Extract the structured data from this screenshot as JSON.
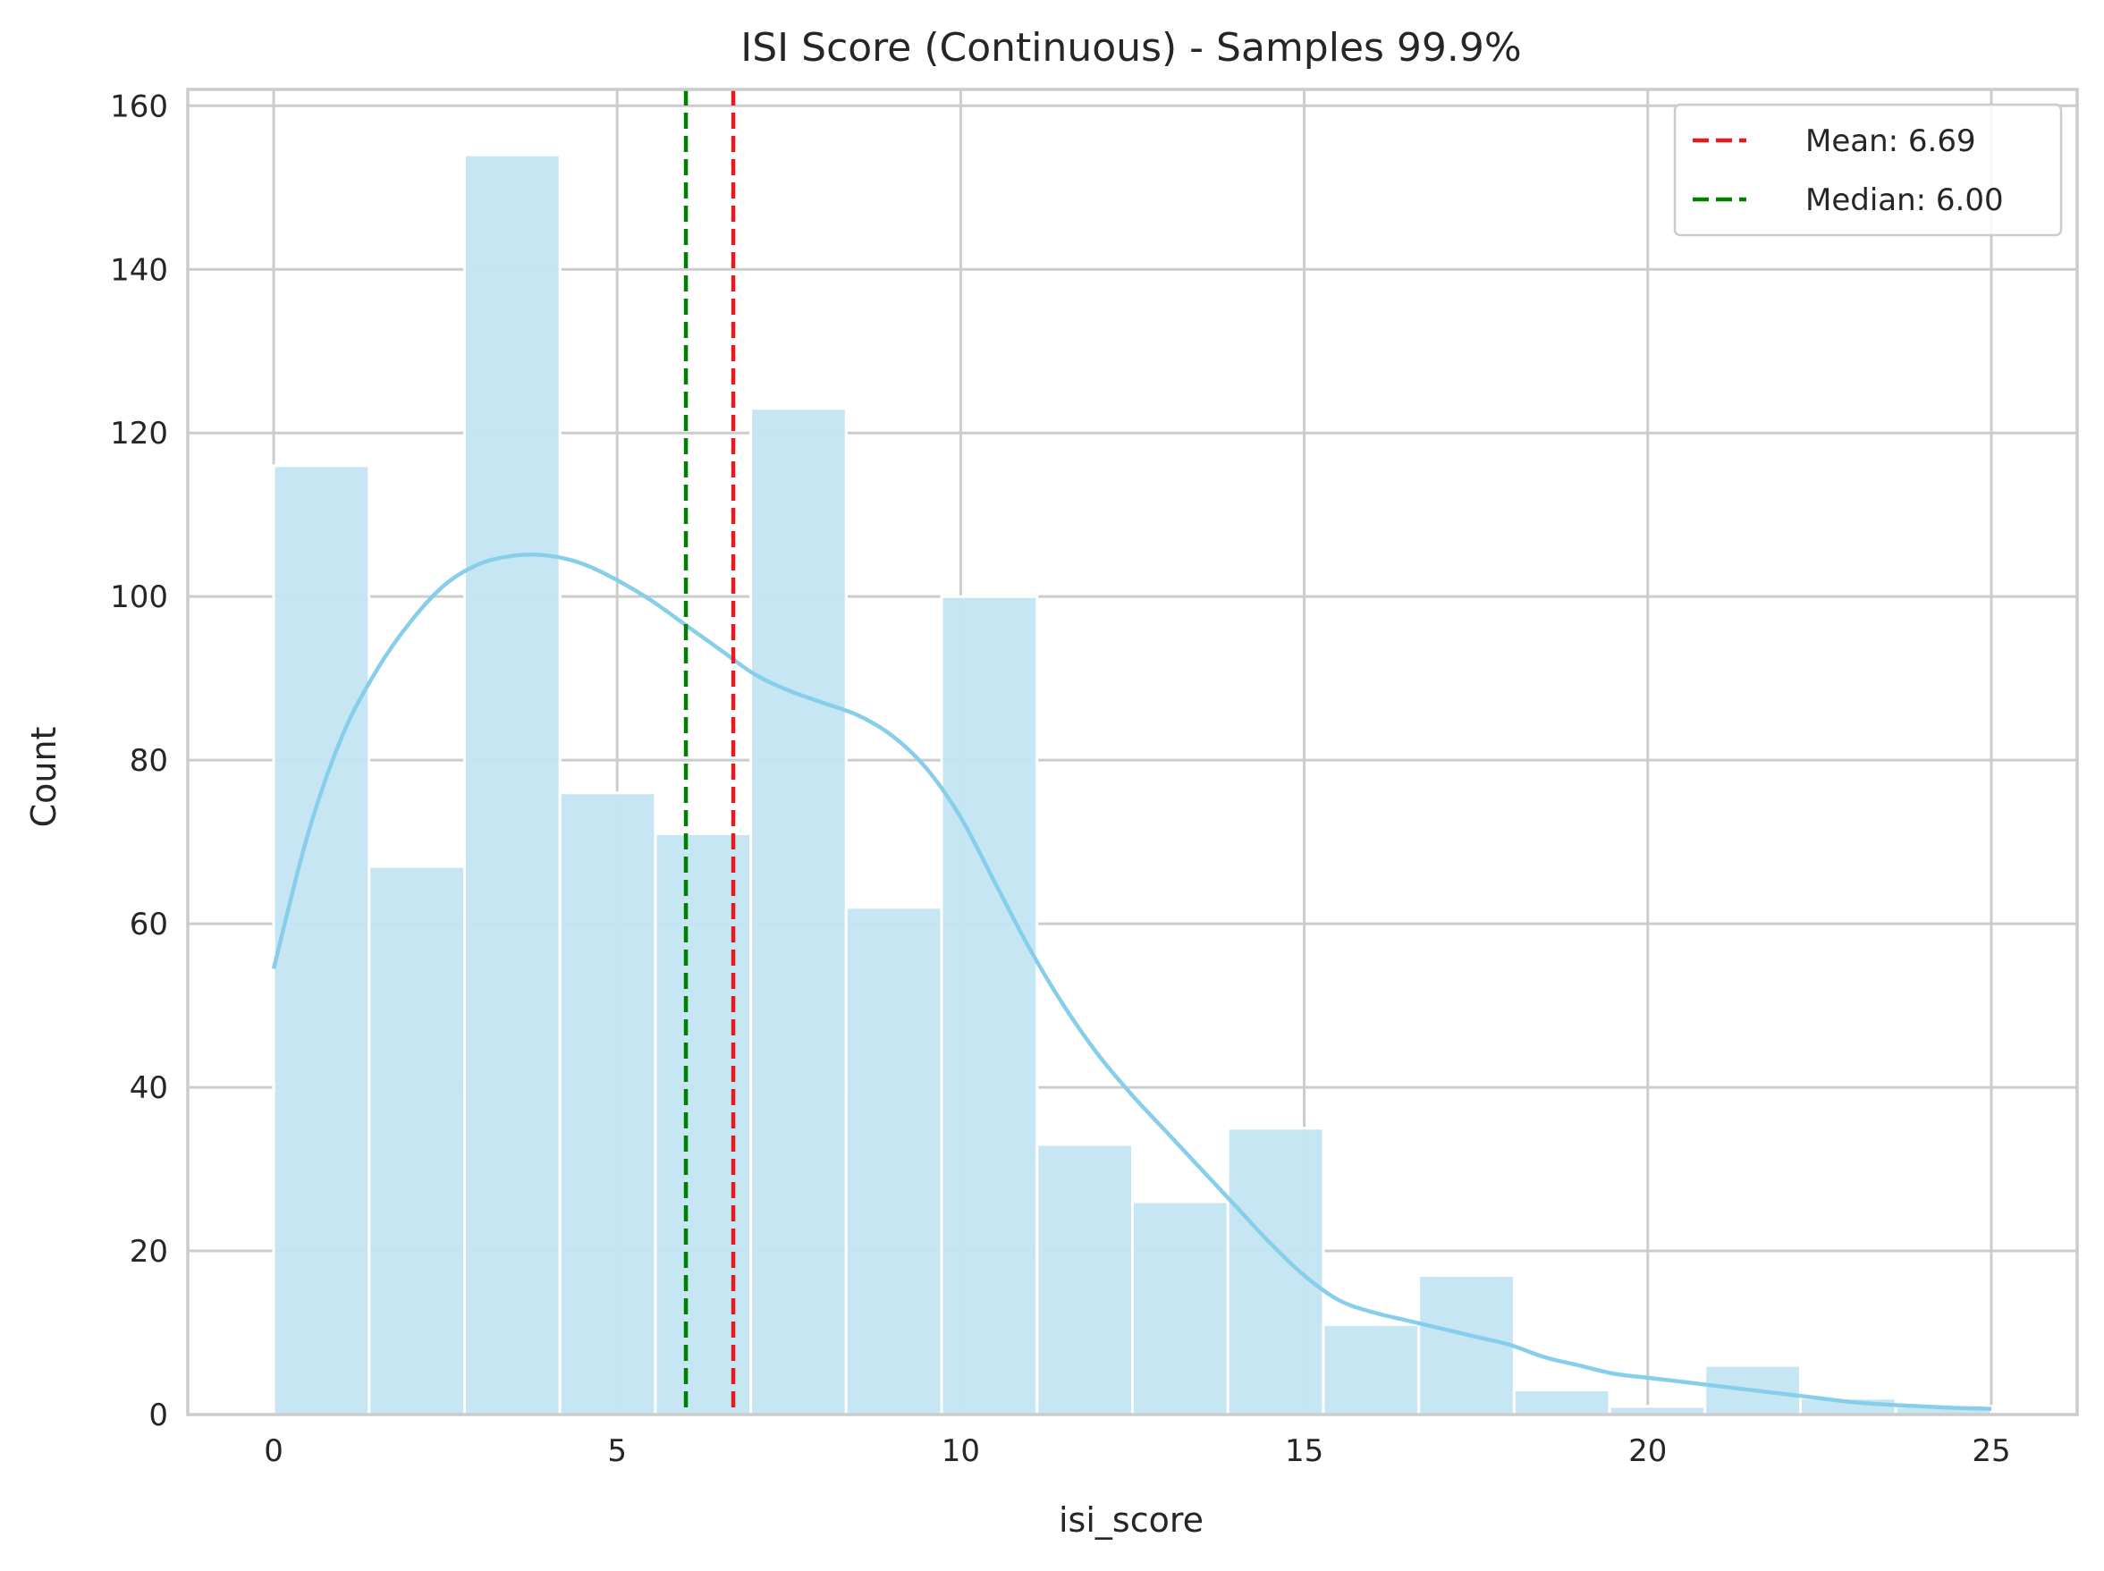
{
  "chart_data": {
    "type": "bar",
    "title": "ISI Score (Continuous) - Samples 99.9%",
    "xlabel": "isi_score",
    "ylabel": "Count",
    "xlim": [
      -1.25,
      26.25
    ],
    "ylim": [
      0,
      162
    ],
    "x_ticks": [
      0,
      5,
      10,
      15,
      20,
      25
    ],
    "y_ticks": [
      0,
      20,
      40,
      60,
      80,
      100,
      120,
      140,
      160
    ],
    "grid": true,
    "legend_position": "top-right",
    "bins": {
      "edges": [
        0,
        1.389,
        2.778,
        4.167,
        5.556,
        6.944,
        8.333,
        9.722,
        11.111,
        12.5,
        13.889,
        15.278,
        16.667,
        18.056,
        19.444,
        20.833,
        22.222,
        23.611,
        25
      ],
      "counts": [
        116,
        67,
        154,
        76,
        71,
        123,
        62,
        100,
        33,
        26,
        35,
        11,
        17,
        3,
        1,
        6,
        2,
        1
      ]
    },
    "kde": {
      "x": [
        0,
        0.5,
        1,
        1.5,
        2,
        2.5,
        3,
        3.5,
        4,
        4.5,
        5,
        5.5,
        6,
        6.5,
        7,
        7.5,
        8,
        8.5,
        9,
        9.5,
        10,
        10.5,
        11,
        11.5,
        12,
        12.5,
        13,
        13.5,
        14,
        14.5,
        15,
        15.5,
        16,
        16.5,
        17,
        17.5,
        18,
        18.5,
        19,
        19.5,
        20,
        20.5,
        21,
        21.5,
        22,
        22.5,
        23,
        23.5,
        24,
        24.5,
        25
      ],
      "y": [
        54.5,
        71,
        83,
        91,
        97,
        101.5,
        104,
        105,
        105,
        104,
        102,
        99.5,
        96.5,
        93.5,
        90.5,
        88.5,
        87,
        85.5,
        83,
        79,
        73,
        65,
        57,
        50,
        44,
        39,
        34.5,
        30,
        25.5,
        21,
        17,
        14,
        12.5,
        11.5,
        10.5,
        9.5,
        8.5,
        7,
        6,
        5,
        4.5,
        4,
        3.5,
        3,
        2.5,
        2,
        1.5,
        1.2,
        1,
        0.8,
        0.7
      ]
    },
    "series": [
      {
        "name": "Mean: 6.69",
        "type": "vline",
        "value": 6.69,
        "color": "#e41a1c"
      },
      {
        "name": "Median: 6.00",
        "type": "vline",
        "value": 6.0,
        "color": "#008000"
      }
    ],
    "colors": {
      "bar_fill": "#c3e5f3",
      "kde_line": "#87ceeb",
      "grid": "#cccccc",
      "spine": "#cccccc"
    }
  }
}
